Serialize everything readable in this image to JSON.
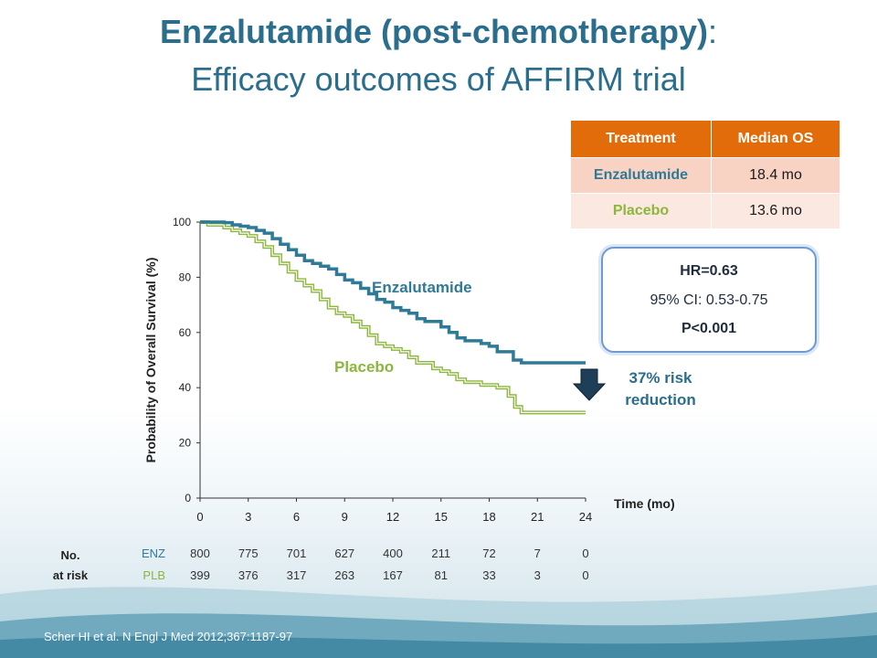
{
  "slide": {
    "title_line1": "Enzalutamide (post-chemotherapy)",
    "title_line1_suffix": ":",
    "title_line2": "Efficacy outcomes of AFFIRM trial",
    "citation": "Scher HI et al. N Engl J Med 2012;367:1187-97"
  },
  "median_os_table": {
    "headers": [
      "Treatment",
      "Median OS"
    ],
    "rows": [
      {
        "treatment": "Enzalutamide",
        "median_os": "18.4 mo"
      },
      {
        "treatment": "Placebo",
        "median_os": "13.6 mo"
      }
    ]
  },
  "stats_box": {
    "hr": "HR=0.63",
    "ci": "95% CI: 0.53-0.75",
    "p": "P<0.001"
  },
  "risk_reduction": {
    "line1": "37% risk",
    "line2": "reduction"
  },
  "risk_table": {
    "title_line1": "No.",
    "title_line2": "at risk",
    "rows": [
      {
        "label": "ENZ",
        "values": [
          "800",
          "775",
          "701",
          "627",
          "400",
          "211",
          "72",
          "7",
          "0"
        ]
      },
      {
        "label": "PLB",
        "values": [
          "399",
          "376",
          "317",
          "263",
          "167",
          "81",
          "33",
          "3",
          "0"
        ]
      }
    ]
  },
  "colors": {
    "title": "#2a6d8c",
    "enzalutamide": "#2f7a97",
    "placebo": "#8db63c",
    "table_header": "#e36c0a",
    "enz_row": "#f8d3c3",
    "plb_row": "#fbe8e0",
    "box_border": "#6b9bd0"
  },
  "chart_data": {
    "type": "line",
    "xlabel": "Time (mo)",
    "ylabel": "Probability of Overall Survival (%)",
    "xlim": [
      0,
      24
    ],
    "ylim": [
      0,
      100
    ],
    "xticks": [
      "0",
      "3",
      "6",
      "9",
      "12",
      "15",
      "18",
      "21",
      "24"
    ],
    "yticks": [
      "0",
      "20",
      "40",
      "60",
      "80",
      "100"
    ],
    "grid": false,
    "series": [
      {
        "name": "Enzalutamide",
        "color": "#2f7a97",
        "x": [
          0,
          0.5,
          1,
          1.5,
          2,
          2.5,
          3,
          3.5,
          4,
          4.5,
          5,
          5.5,
          6,
          6.5,
          7,
          7.5,
          8,
          8.5,
          9,
          9.5,
          10,
          10.5,
          11,
          11.5,
          12,
          12.5,
          13,
          13.5,
          14,
          14.5,
          15,
          15.5,
          16,
          16.5,
          17,
          17.5,
          18,
          18.5,
          19,
          19.5,
          20,
          21,
          22,
          23,
          24
        ],
        "y": [
          100,
          100,
          100,
          99.8,
          99,
          98.5,
          98,
          97,
          96,
          94,
          92,
          90,
          88,
          86,
          85,
          84,
          83,
          81,
          79,
          78,
          76,
          74,
          72,
          71,
          69,
          68,
          67,
          65,
          64,
          64,
          62,
          60,
          58,
          57,
          57,
          56,
          55,
          53,
          53,
          50,
          49,
          49,
          49,
          49,
          49
        ]
      },
      {
        "name": "Placebo",
        "color": "#8db63c",
        "x": [
          0,
          0.5,
          1,
          1.5,
          2,
          2.5,
          3,
          3.5,
          4,
          4.5,
          5,
          5.5,
          6,
          6.5,
          7,
          7.5,
          8,
          8.5,
          9,
          9.5,
          10,
          10.5,
          11,
          11.5,
          12,
          12.5,
          13,
          13.5,
          14,
          14.5,
          15,
          15.5,
          16,
          16.5,
          17,
          17.5,
          18,
          18.5,
          19,
          19.2,
          19.6,
          20,
          21,
          22,
          23,
          24
        ],
        "y": [
          100,
          99,
          99,
          98,
          97,
          96,
          95,
          93,
          91,
          88,
          85,
          82,
          79,
          77,
          75,
          72,
          69,
          67,
          66,
          64,
          62,
          59,
          56,
          55,
          54,
          53,
          51,
          49,
          49,
          47,
          46,
          45,
          43,
          42,
          42,
          41,
          41,
          40,
          40,
          37,
          33,
          31,
          31,
          31,
          31,
          31
        ]
      }
    ]
  }
}
